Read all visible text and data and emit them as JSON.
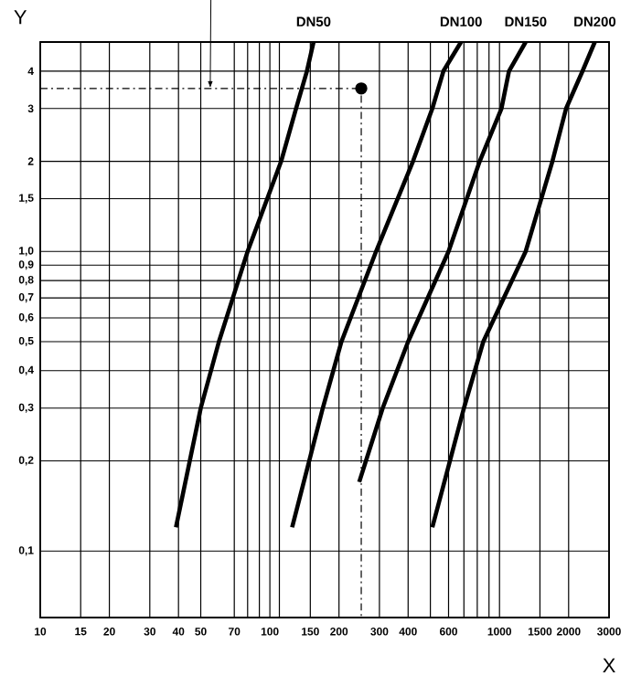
{
  "chart_data": {
    "type": "line",
    "xlabel": "X",
    "ylabel": "Y",
    "log": "xy",
    "grid": true,
    "xlim": [
      10,
      3000
    ],
    "ylim": [
      0.06,
      5
    ],
    "xticks": [
      10,
      15,
      20,
      30,
      40,
      50,
      70,
      {
        "value": 80,
        "label": null
      },
      {
        "value": 90,
        "label": null
      },
      100,
      {
        "value": 110,
        "label": null
      },
      150,
      200,
      300,
      400,
      {
        "value": 500,
        "label": null
      },
      600,
      {
        "value": 700,
        "label": null
      },
      {
        "value": 800,
        "label": null
      },
      {
        "value": 900,
        "label": null
      },
      1000,
      1500,
      2000,
      3000
    ],
    "yticks": [
      {
        "value": 0.1,
        "label": "0,1"
      },
      {
        "value": 0.2,
        "label": "0,2"
      },
      {
        "value": 0.3,
        "label": "0,3"
      },
      {
        "value": 0.4,
        "label": "0,4"
      },
      {
        "value": 0.5,
        "label": "0,5"
      },
      {
        "value": 0.6,
        "label": "0,6"
      },
      {
        "value": 0.7,
        "label": "0,7"
      },
      {
        "value": 0.8,
        "label": "0,8"
      },
      {
        "value": 0.9,
        "label": "0,9"
      },
      {
        "value": 1.0,
        "label": "1,0"
      },
      {
        "value": 1.5,
        "label": "1,5"
      },
      2,
      3,
      4
    ],
    "series": [
      {
        "name": "DN50",
        "color": "#000000",
        "line_style": "solid",
        "x": [
          39,
          50,
          60,
          80,
          112,
          130,
          145,
          155
        ],
        "values": [
          0.12,
          0.3,
          0.5,
          1.0,
          2,
          3,
          4,
          5
        ]
      },
      {
        "name": "DN100",
        "color": "#000000",
        "line_style": "solid",
        "x": [
          125,
          170,
          205,
          290,
          420,
          510,
          570,
          680
        ],
        "values": [
          0.12,
          0.3,
          0.5,
          1.0,
          2,
          3,
          4,
          5
        ]
      },
      {
        "name": "DN150",
        "color": "#000000",
        "line_style": "solid",
        "x": [
          245,
          310,
          400,
          600,
          820,
          1020,
          1100,
          1300
        ],
        "values": [
          0.17,
          0.3,
          0.5,
          1.0,
          2,
          3,
          4,
          5
        ]
      },
      {
        "name": "DN200",
        "color": "#000000",
        "line_style": "solid",
        "x": [
          510,
          700,
          850,
          1300,
          1700,
          1950,
          2300,
          2600
        ],
        "values": [
          0.12,
          0.3,
          0.5,
          1.0,
          2,
          3,
          4,
          5
        ]
      },
      {
        "color": "#000000",
        "line_style": "dashed",
        "x": [
          10,
          250,
          250
        ],
        "values": [
          3.5,
          3.5,
          0.06
        ]
      },
      {
        "type": "scatter",
        "marker": "circle",
        "color": "#000000",
        "x": [
          250
        ],
        "values": [
          3.5
        ]
      }
    ]
  }
}
